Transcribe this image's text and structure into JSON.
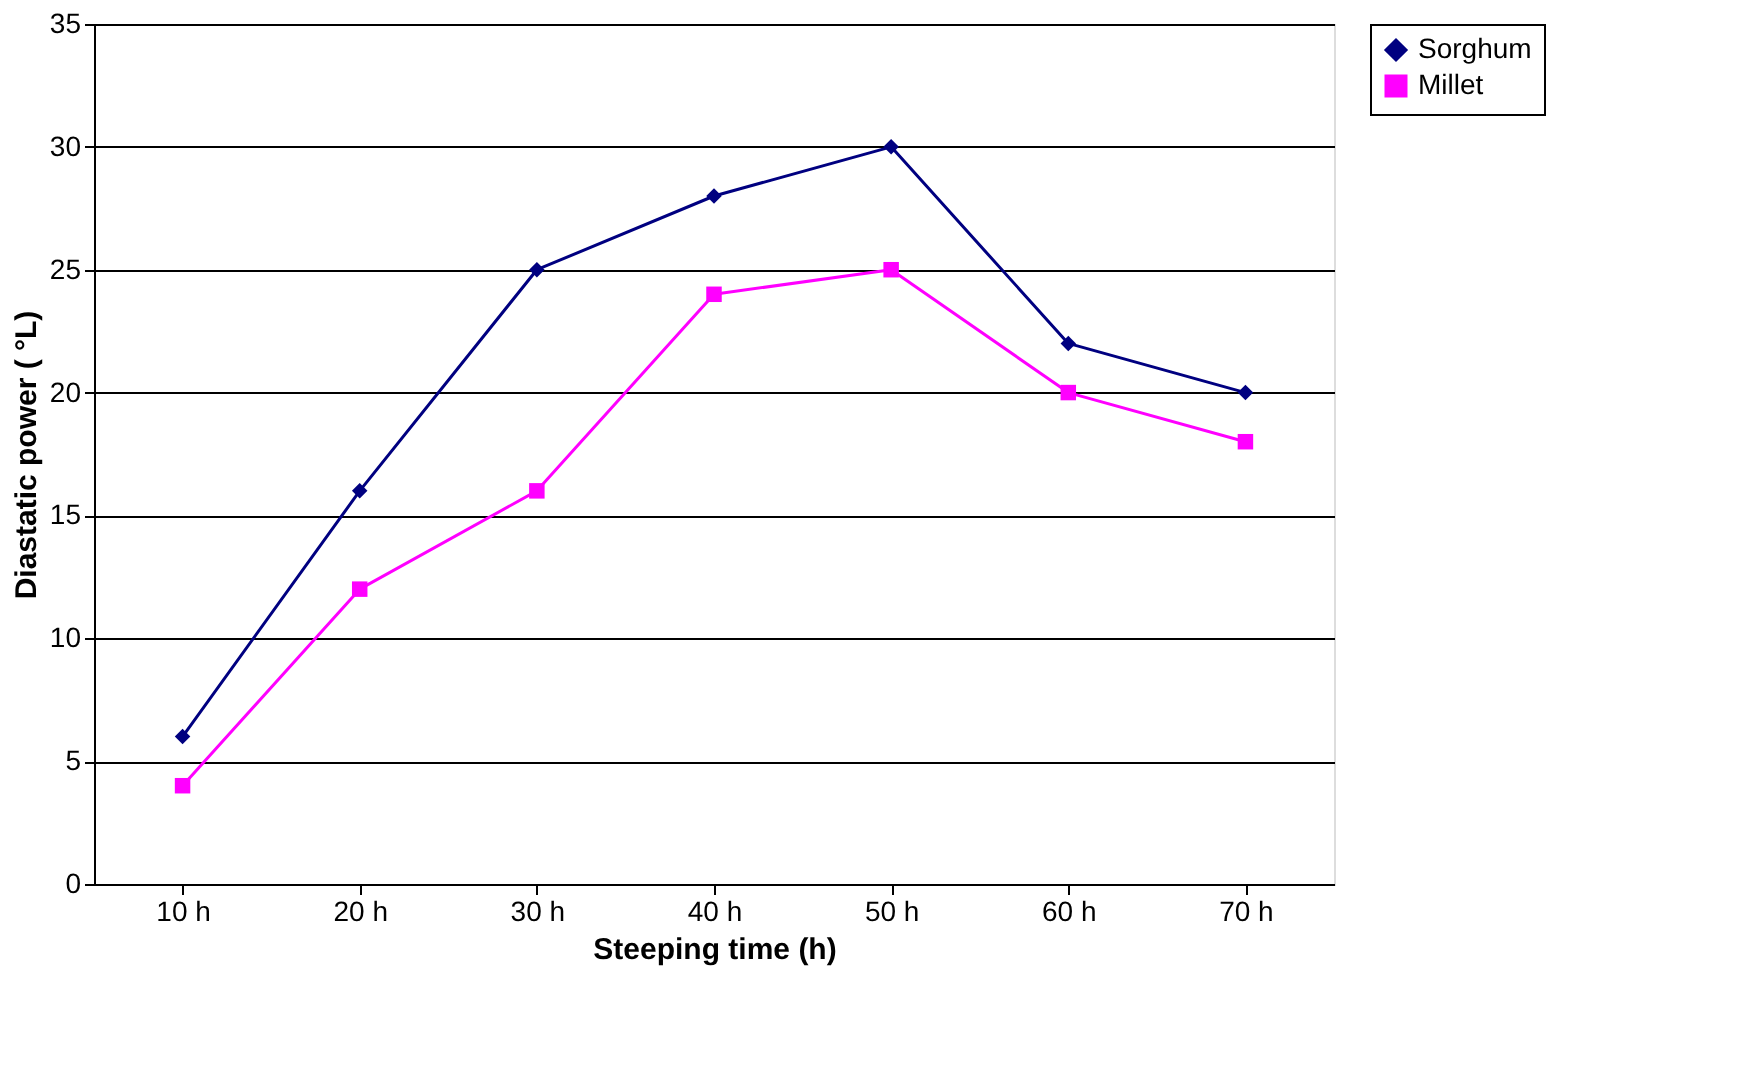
{
  "chart_data": {
    "type": "line",
    "xlabel": "Steeping time (h)",
    "ylabel": "Diastatic power ( °L)",
    "categories": [
      "10 h",
      "20 h",
      "30 h",
      "40 h",
      "50 h",
      "60 h",
      "70 h"
    ],
    "series": [
      {
        "name": "Sorghum",
        "color": "#000080",
        "marker": "diamond",
        "values": [
          6,
          16,
          25,
          28,
          30,
          22,
          20
        ]
      },
      {
        "name": "Millet",
        "color": "#ff00ff",
        "marker": "square",
        "values": [
          4,
          12,
          16,
          24,
          25,
          20,
          18
        ]
      }
    ],
    "ylim": [
      0,
      35
    ],
    "yticks": [
      0,
      5,
      10,
      15,
      20,
      25,
      30,
      35
    ],
    "grid": "y",
    "legend": "right",
    "line_style": "solid"
  }
}
